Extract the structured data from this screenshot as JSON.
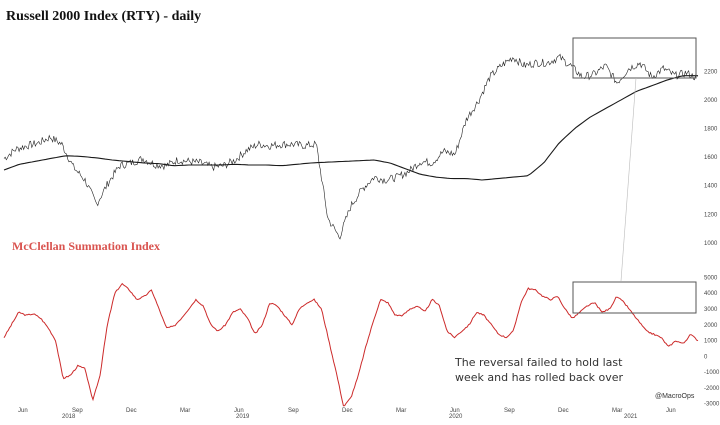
{
  "chart_data": [
    {
      "type": "line",
      "title": "Russell 2000 Index (RTY) - daily",
      "y_ticks": [
        1000,
        1200,
        1400,
        1600,
        1800,
        2000,
        2200
      ],
      "ylim": [
        950,
        2420
      ],
      "series": [
        {
          "values": [
            1590,
            1655,
            1680,
            1700,
            1740,
            1690,
            1530,
            1440,
            1270,
            1420,
            1540,
            1560,
            1590,
            1550,
            1540,
            1580,
            1570,
            1560,
            1530,
            1540,
            1580,
            1650,
            1690,
            1680,
            1690,
            1690,
            1680,
            1690,
            1170,
            1040,
            1260,
            1380,
            1460,
            1440,
            1460,
            1500,
            1570,
            1560,
            1640,
            1620,
            1870,
            1990,
            2160,
            2240,
            2300,
            2240,
            2260,
            2260,
            2300,
            2240,
            2160,
            2180,
            2240,
            2120,
            2220,
            2260,
            2160,
            2220,
            2170,
            2190,
            2150
          ]
        },
        {
          "values": [
            1510,
            1550,
            1570,
            1590,
            1610,
            1605,
            1595,
            1580,
            1570,
            1560,
            1555,
            1540,
            1545,
            1545,
            1545,
            1550,
            1545,
            1545,
            1540,
            1550,
            1560,
            1565,
            1570,
            1575,
            1580,
            1560,
            1520,
            1480,
            1460,
            1450,
            1450,
            1440,
            1450,
            1460,
            1470,
            1560,
            1700,
            1800,
            1880,
            1940,
            2000,
            2060,
            2100,
            2140,
            2170,
            2170
          ]
        }
      ],
      "annotation": "data-date-highlight-box"
    },
    {
      "type": "line",
      "title": "McClellan Summation Index",
      "y_ticks": [
        -3000,
        -2000,
        -1000,
        0,
        1000,
        2000,
        3000,
        4000,
        5000
      ],
      "ylim": [
        -3400,
        5600
      ],
      "series": [
        {
          "values": [
            1200,
            2000,
            2800,
            2600,
            2700,
            2400,
            1800,
            1000,
            -1400,
            -1200,
            -600,
            -800,
            -2800,
            -1200,
            2000,
            4000,
            4600,
            4200,
            3600,
            3800,
            4200,
            3000,
            1800,
            1900,
            2400,
            3000,
            3600,
            3200,
            2000,
            1600,
            2000,
            2800,
            3000,
            2400,
            1400,
            2000,
            3400,
            3200,
            2600,
            2000,
            3000,
            3400,
            3600,
            3000,
            1000,
            -1000,
            -3200,
            -2600,
            -1200,
            600,
            2200,
            3600,
            3400,
            2600,
            2600,
            3000,
            3200,
            2800,
            3600,
            3200,
            1600,
            1200,
            1600,
            2000,
            2800,
            2600,
            2000,
            1400,
            1200,
            1600,
            3400,
            4300,
            4200,
            3800,
            3600,
            3800,
            3000,
            2400,
            2800,
            3200,
            3400,
            2800,
            3000,
            3800,
            3400,
            2800,
            2200,
            1600,
            1400,
            1200,
            600,
            1000,
            800,
            1400,
            1000
          ]
        }
      ]
    }
  ],
  "x_ticks": [
    "Jun",
    "Sep",
    "Dec",
    "Mar",
    "Jun",
    "Sep",
    "Dec",
    "Mar",
    "Jun",
    "Sep",
    "Dec",
    "Mar",
    "Jun"
  ],
  "year_labels": [
    "2018",
    "2019",
    "2020",
    "2021"
  ],
  "note_line1": "The reversal failed to hold last",
  "note_line2": "week and has rolled back over",
  "credit": "@MacroOps",
  "colors": {
    "price": "#222222",
    "ma": "#1a1a1a",
    "summation": "#cc2a2a",
    "box": "#555555"
  }
}
